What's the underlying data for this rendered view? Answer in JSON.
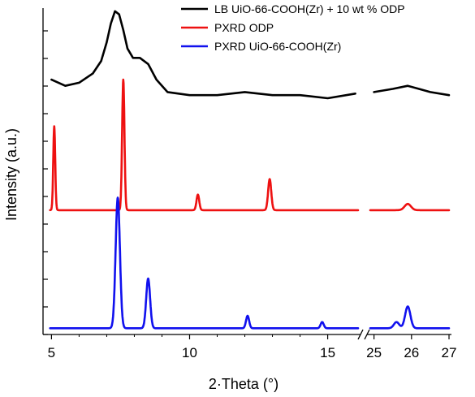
{
  "chart_data": {
    "type": "line",
    "xlabel": "2·Theta (°)",
    "ylabel": "Intensity (a.u.)",
    "x_axis_break": {
      "left_range": [
        4.9,
        16.1
      ],
      "right_range": [
        24.9,
        27.0
      ]
    },
    "x_tick_labels": [
      "5",
      "10",
      "15",
      "25",
      "26",
      "27"
    ],
    "x_ticks": [
      5,
      10,
      15,
      25,
      26,
      27
    ],
    "y_ticks": "unlabeled",
    "legend_position": "top-right",
    "colors": {
      "LB": "#000000",
      "ODP": "#ee1111",
      "UIO": "#1111ee"
    },
    "series": [
      {
        "name": "LB UiO-66-COOH(Zr) + 10 wt % ODP",
        "color": "#000000",
        "points": [
          [
            5.0,
            0.82
          ],
          [
            5.5,
            0.8
          ],
          [
            6.0,
            0.81
          ],
          [
            6.5,
            0.84
          ],
          [
            6.8,
            0.88
          ],
          [
            7.0,
            0.94
          ],
          [
            7.15,
            1.0
          ],
          [
            7.3,
            1.04
          ],
          [
            7.45,
            1.03
          ],
          [
            7.6,
            0.98
          ],
          [
            7.75,
            0.92
          ],
          [
            7.95,
            0.89
          ],
          [
            8.2,
            0.89
          ],
          [
            8.5,
            0.87
          ],
          [
            8.8,
            0.82
          ],
          [
            9.2,
            0.78
          ],
          [
            10.0,
            0.77
          ],
          [
            11.0,
            0.77
          ],
          [
            12.0,
            0.78
          ],
          [
            13.0,
            0.77
          ],
          [
            14.0,
            0.77
          ],
          [
            15.0,
            0.76
          ],
          [
            16.0,
            0.775
          ],
          [
            25.0,
            0.78
          ],
          [
            25.5,
            0.79
          ],
          [
            25.9,
            0.8
          ],
          [
            26.2,
            0.79
          ],
          [
            26.5,
            0.78
          ],
          [
            27.0,
            0.77
          ]
        ]
      },
      {
        "name": "PXRD ODP",
        "color": "#ee1111",
        "peaks": [
          {
            "x": 5.1,
            "height": 0.27,
            "width": 0.05
          },
          {
            "x": 7.6,
            "height": 0.42,
            "width": 0.06
          },
          {
            "x": 10.3,
            "height": 0.05,
            "width": 0.07
          },
          {
            "x": 12.9,
            "height": 0.1,
            "width": 0.08
          },
          {
            "x": 25.9,
            "height": 0.02,
            "width": 0.12
          }
        ]
      },
      {
        "name": "PXRD UiO-66-COOH(Zr)",
        "color": "#1111ee",
        "peaks": [
          {
            "x": 7.4,
            "height": 0.42,
            "width": 0.11
          },
          {
            "x": 8.5,
            "height": 0.16,
            "width": 0.1
          },
          {
            "x": 12.1,
            "height": 0.04,
            "width": 0.08
          },
          {
            "x": 14.8,
            "height": 0.02,
            "width": 0.08
          },
          {
            "x": 25.6,
            "height": 0.02,
            "width": 0.1
          },
          {
            "x": 25.9,
            "height": 0.07,
            "width": 0.1
          }
        ]
      }
    ]
  }
}
